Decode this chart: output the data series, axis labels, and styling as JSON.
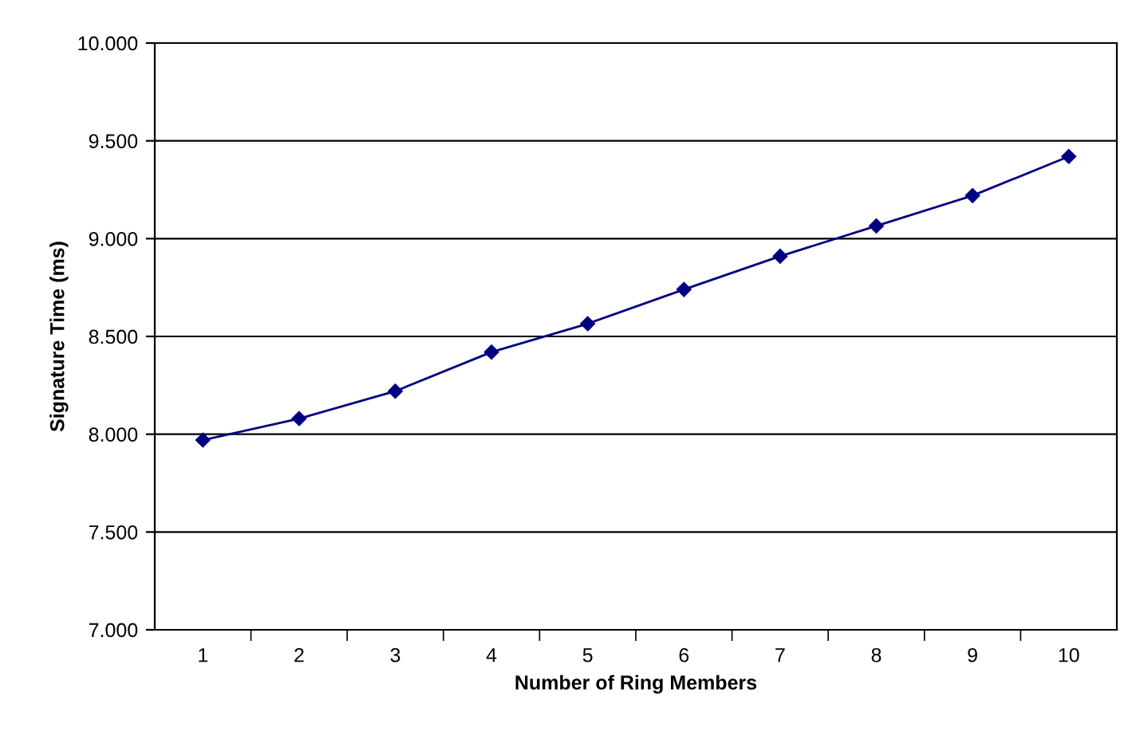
{
  "chart_data": {
    "type": "line",
    "xlabel": "Number of Ring Members",
    "ylabel": "Signature Time (ms)",
    "categories": [
      "1",
      "2",
      "3",
      "4",
      "5",
      "6",
      "7",
      "8",
      "9",
      "10"
    ],
    "series": [
      {
        "color": "#000080",
        "values": [
          7970,
          8080,
          8220,
          8420,
          8565,
          8740,
          8910,
          9065,
          9220,
          9420
        ]
      }
    ],
    "ylim": [
      7000,
      10000
    ],
    "yticks": [
      {
        "value": 7000,
        "label": "7.000"
      },
      {
        "value": 7500,
        "label": "7.500"
      },
      {
        "value": 8000,
        "label": "8.000"
      },
      {
        "value": 8500,
        "label": "8.500"
      },
      {
        "value": 9000,
        "label": "9.000"
      },
      {
        "value": 9500,
        "label": "9.500"
      },
      {
        "value": 10000,
        "label": "10.000"
      }
    ],
    "grid": "y",
    "marker": "diamond",
    "line_style": "solid",
    "legend": false
  }
}
